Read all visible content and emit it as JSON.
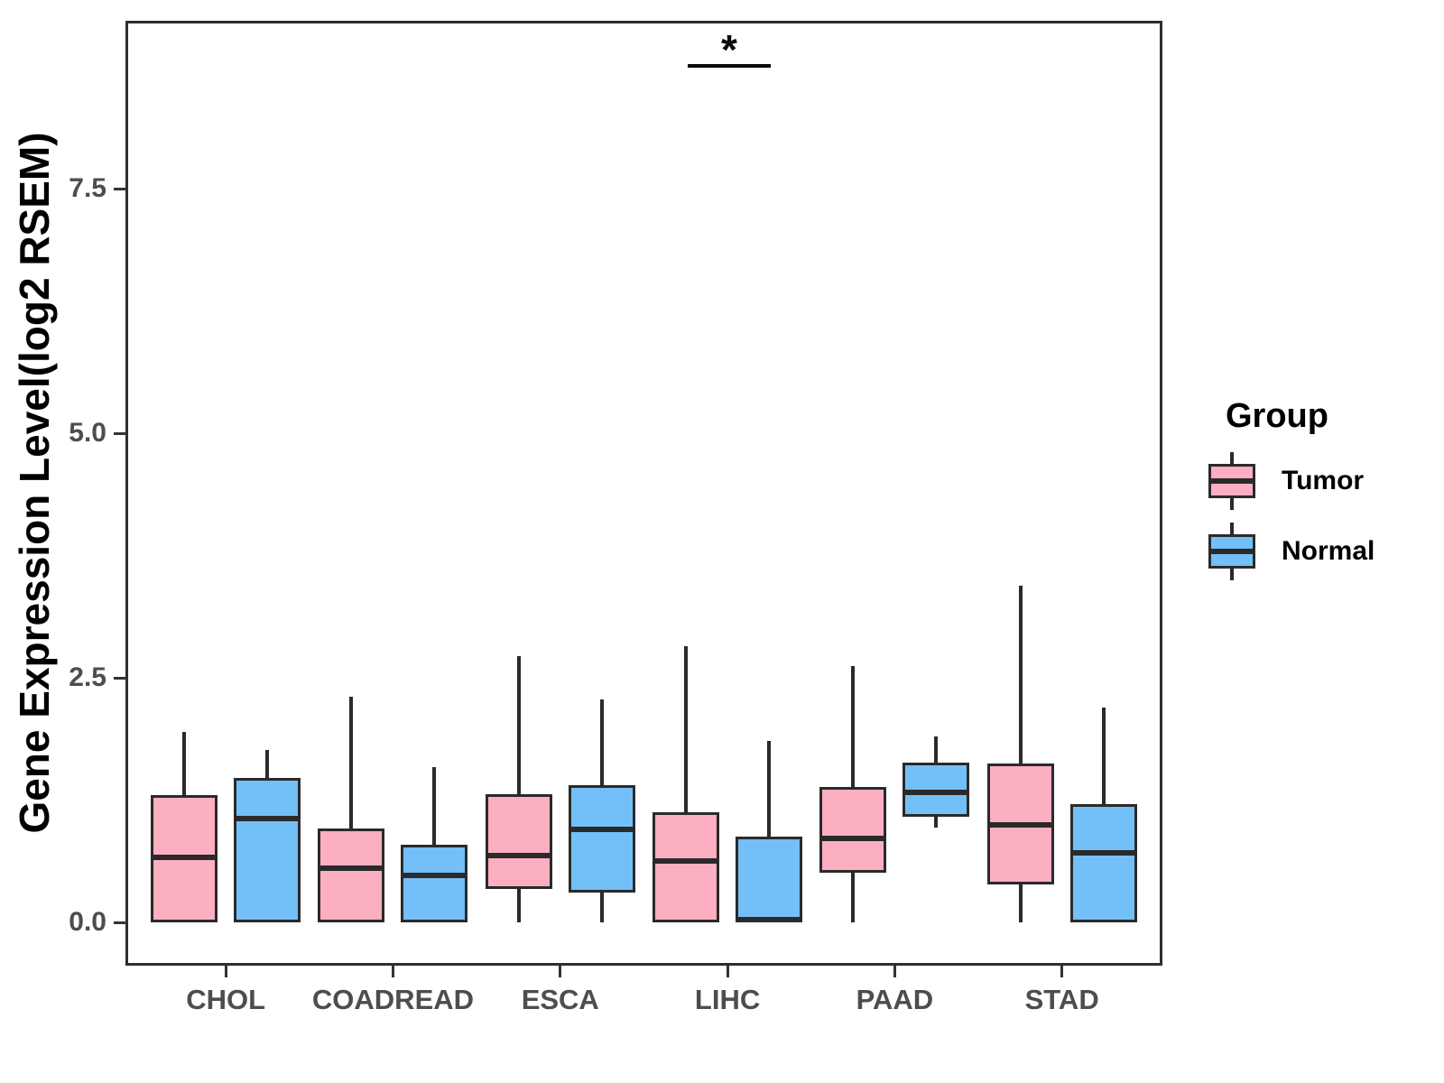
{
  "y_axis": {
    "label": "Gene Expression Level(log2 RSEM)",
    "tick_labels": [
      "0.0",
      "2.5",
      "5.0",
      "7.5"
    ],
    "tick_values": [
      0.0,
      2.5,
      5.0,
      7.5
    ]
  },
  "x_axis": {
    "categories": [
      "CHOL",
      "COADREAD",
      "ESCA",
      "LIHC",
      "PAAD",
      "STAD"
    ]
  },
  "legend": {
    "title": "Group",
    "entries": [
      {
        "label": "Tumor",
        "color": "#FBAFC1"
      },
      {
        "label": "Normal",
        "color": "#73BFF7"
      }
    ]
  },
  "significance": {
    "symbol": "*",
    "category": "LIHC"
  },
  "colors": {
    "tumor_fill": "#FBAFC1",
    "normal_fill": "#73BFF7",
    "box_border": "#2a2a2a",
    "panel_border": "#2e2e2e",
    "tick_text": "#4d4d4d",
    "title_text": "#000000"
  },
  "chart_data": {
    "type": "boxplot",
    "title": "",
    "xlabel": "",
    "ylabel": "Gene Expression Level(log2 RSEM)",
    "ylim": [
      -0.45,
      9.2
    ],
    "grid": false,
    "legend_position": "right",
    "categories": [
      "CHOL",
      "COADREAD",
      "ESCA",
      "LIHC",
      "PAAD",
      "STAD"
    ],
    "series": [
      {
        "name": "Tumor",
        "color": "#FBAFC1",
        "boxes": [
          {
            "min": 0.0,
            "q1": 0.0,
            "median": 0.66,
            "q3": 1.3,
            "max": 1.95
          },
          {
            "min": 0.0,
            "q1": 0.0,
            "median": 0.55,
            "q3": 0.96,
            "max": 2.31
          },
          {
            "min": 0.0,
            "q1": 0.34,
            "median": 0.68,
            "q3": 1.31,
            "max": 2.72
          },
          {
            "min": 0.0,
            "q1": 0.0,
            "median": 0.63,
            "q3": 1.13,
            "max": 2.82
          },
          {
            "min": 0.0,
            "q1": 0.51,
            "median": 0.86,
            "q3": 1.38,
            "max": 2.62
          },
          {
            "min": 0.0,
            "q1": 0.39,
            "median": 1.0,
            "q3": 1.62,
            "max": 3.44
          }
        ]
      },
      {
        "name": "Normal",
        "color": "#73BFF7",
        "boxes": [
          {
            "min": 0.0,
            "q1": 0.0,
            "median": 1.06,
            "q3": 1.48,
            "max": 1.76
          },
          {
            "min": 0.0,
            "q1": 0.0,
            "median": 0.48,
            "q3": 0.79,
            "max": 1.59
          },
          {
            "min": 0.0,
            "q1": 0.3,
            "median": 0.95,
            "q3": 1.4,
            "max": 2.28
          },
          {
            "min": 0.0,
            "q1": 0.0,
            "median": 0.03,
            "q3": 0.88,
            "max": 1.85
          },
          {
            "min": 0.97,
            "q1": 1.08,
            "median": 1.33,
            "q3": 1.63,
            "max": 1.9
          },
          {
            "min": 0.0,
            "q1": 0.0,
            "median": 0.71,
            "q3": 1.21,
            "max": 2.2
          }
        ]
      }
    ],
    "annotations": [
      {
        "type": "significance-bar",
        "category": "LIHC",
        "symbol": "*",
        "y": 8.74
      }
    ]
  }
}
